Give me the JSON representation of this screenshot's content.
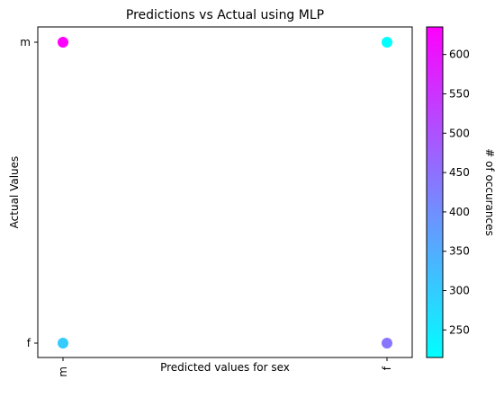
{
  "chart_data": {
    "type": "scatter",
    "title": "Predictions vs Actual using MLP",
    "xlabel": "Predicted values for sex",
    "ylabel": "Actual Values",
    "x_categories": [
      "m",
      "f"
    ],
    "y_categories": [
      "f",
      "m"
    ],
    "points": [
      {
        "x": "m",
        "y": "m",
        "count": 635
      },
      {
        "x": "f",
        "y": "m",
        "count": 215
      },
      {
        "x": "m",
        "y": "f",
        "count": 300
      },
      {
        "x": "f",
        "y": "f",
        "count": 440
      }
    ],
    "colorbar": {
      "label": "# of occurances",
      "colormap": "cool",
      "min": 215,
      "max": 635,
      "ticks": [
        250,
        300,
        350,
        400,
        450,
        500,
        550,
        600
      ],
      "color_low": "#00ffff",
      "color_high": "#ff00ff"
    },
    "grid": false
  }
}
